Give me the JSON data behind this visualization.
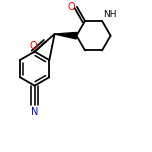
{
  "background_color": "#ffffff",
  "bond_color": "#000000",
  "figsize": [
    1.52,
    1.52
  ],
  "dpi": 100,
  "lw": 1.3,
  "atom_O_color": "#ff0000",
  "atom_N_color": "#0000ff",
  "atom_C_color": "#000000",
  "font_size": 7.0,
  "xlim": [
    0.05,
    0.95
  ],
  "ylim": [
    0.05,
    0.95
  ]
}
